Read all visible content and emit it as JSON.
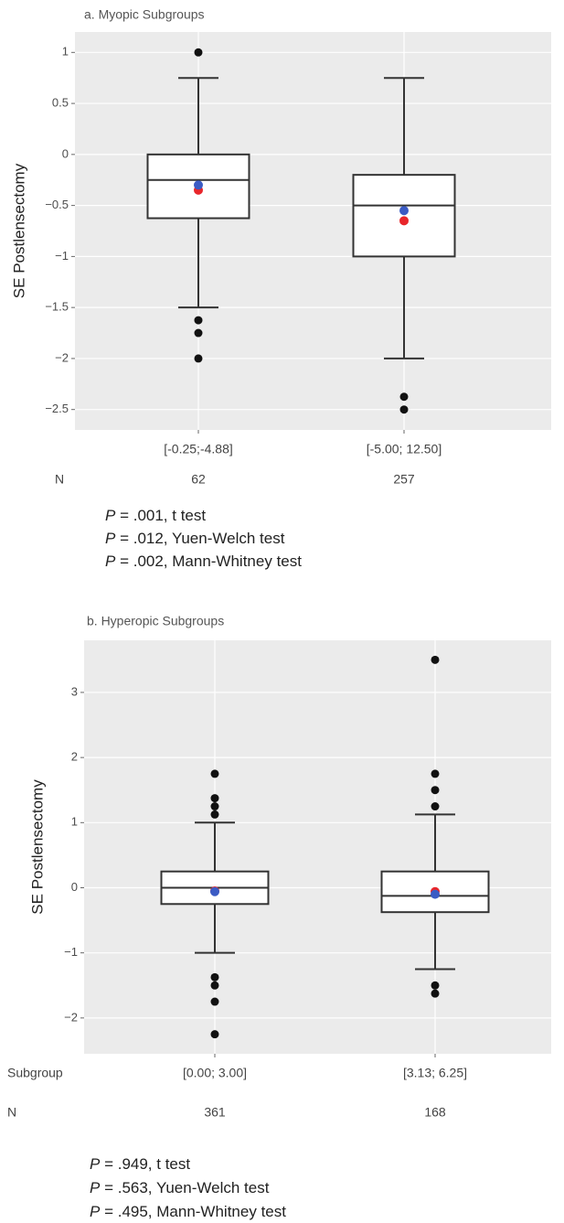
{
  "chart_data": [
    {
      "type": "box",
      "title": "a.  Myopic  Subgroups",
      "y_label": "SE Postlensectomy",
      "categories": [
        "[-0.25;-4.88]",
        "[-5.00; 12.50]"
      ],
      "n_label": "N",
      "n_values": [
        62,
        257
      ],
      "ylim": [
        -2.7,
        1.2
      ],
      "yticks": [
        {
          "value": -2.5,
          "label": "−2.5"
        },
        {
          "value": -2,
          "label": "−2"
        },
        {
          "value": -1.5,
          "label": "−1.5"
        },
        {
          "value": -1,
          "label": "−1"
        },
        {
          "value": -0.5,
          "label": "−0.5"
        },
        0,
        0.5,
        1
      ],
      "grid": true,
      "box_color": "#333333",
      "box_fill": "#ffffff",
      "outlier_color": "#111111",
      "boxes": [
        {
          "whisker_low": -1.5,
          "q1": -0.625,
          "median": -0.25,
          "q3": 0,
          "whisker_high": 0.75,
          "outliers": [
            1,
            -1.625,
            -1.75,
            -2
          ]
        },
        {
          "whisker_low": -2,
          "q1": -1,
          "median": -0.5,
          "q3": -0.2,
          "whisker_high": 0.75,
          "outliers": [
            -2.375,
            -2.5
          ]
        }
      ],
      "points": [
        {
          "color": "#e8262b",
          "values": [
            -0.35,
            -0.65
          ]
        },
        {
          "color": "#3b5bc4",
          "values": [
            -0.3,
            -0.55
          ]
        }
      ],
      "p_values": [
        {
          "symbol": "P",
          "text": " = .001, t test"
        },
        {
          "symbol": "P",
          "text": " = .012, Yuen-Welch test"
        },
        {
          "symbol": "P",
          "text": " = .002, Mann-Whitney test"
        }
      ]
    },
    {
      "type": "box",
      "title": "b.  Hyperopic  Subgroups",
      "y_label": "SE Postlensectomy",
      "x_label": "Subgroup",
      "categories": [
        "[0.00; 3.00]",
        "[3.13; 6.25]"
      ],
      "n_label": "N",
      "n_values": [
        361,
        168
      ],
      "ylim": [
        -2.55,
        3.8
      ],
      "yticks": [
        {
          "value": -2,
          "label": "−2"
        },
        {
          "value": -1,
          "label": "−1"
        },
        0,
        1,
        2,
        3
      ],
      "grid": true,
      "box_color": "#333333",
      "box_fill": "#ffffff",
      "outlier_color": "#111111",
      "boxes": [
        {
          "whisker_low": -1,
          "q1": -0.25,
          "median": 0,
          "q3": 0.25,
          "whisker_high": 1,
          "outliers": [
            1.75,
            1.375,
            1.25,
            1.125,
            -1.375,
            -1.5,
            -1.75,
            -2.25
          ]
        },
        {
          "whisker_low": -1.25,
          "q1": -0.375,
          "median": -0.125,
          "q3": 0.25,
          "whisker_high": 1.125,
          "outliers": [
            3.5,
            1.75,
            1.5,
            1.25,
            -1.5,
            -1.625
          ]
        }
      ],
      "points": [
        {
          "color": "#e8262b",
          "values": [
            -0.05,
            -0.06
          ]
        },
        {
          "color": "#3b5bc4",
          "values": [
            -0.06,
            -0.1
          ]
        }
      ],
      "p_values": [
        {
          "symbol": "P",
          "text": " = .949, t test"
        },
        {
          "symbol": "P",
          "text": " = .563, Yuen-Welch test"
        },
        {
          "symbol": "P",
          "text": " = .495, Mann-Whitney test"
        }
      ]
    }
  ]
}
